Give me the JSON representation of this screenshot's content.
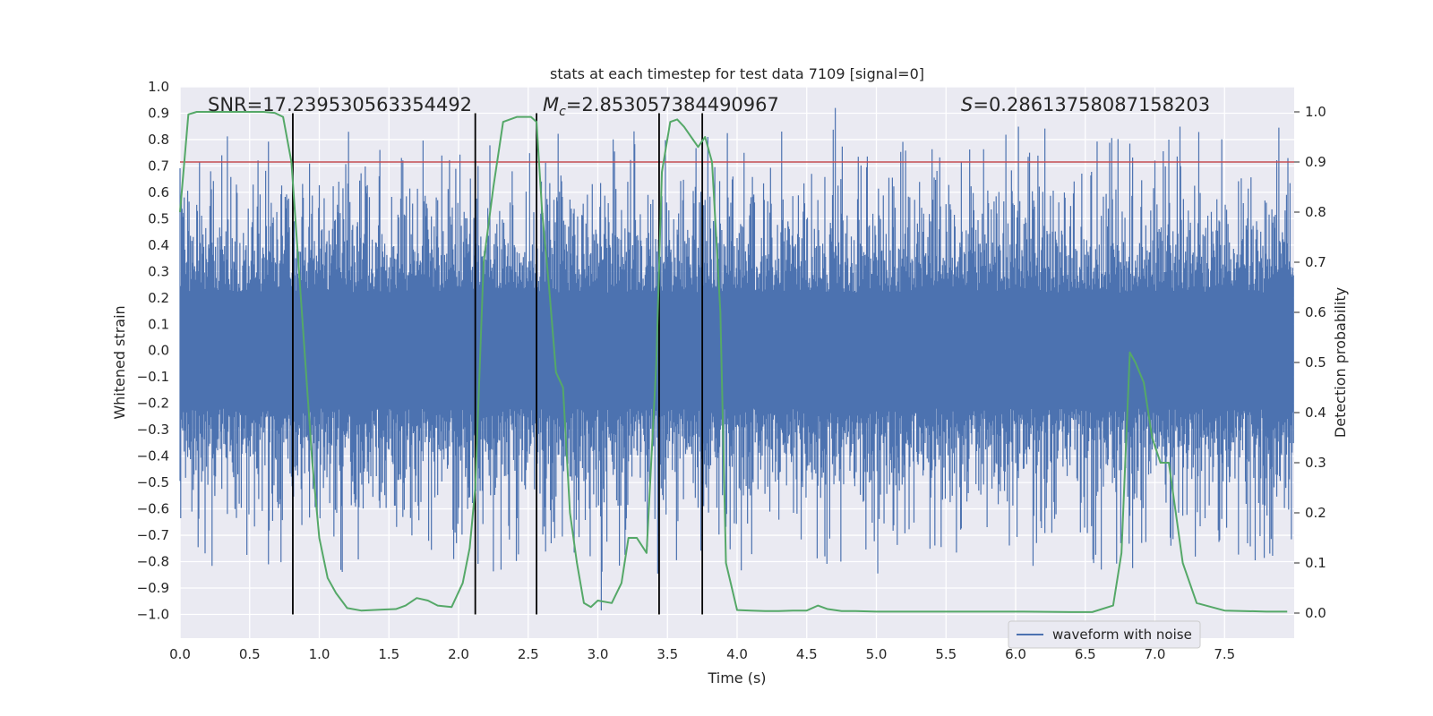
{
  "chart_data": {
    "type": "line",
    "title": "stats at each timestep for test data 7109 [signal=0]",
    "xlabel": "Time (s)",
    "ylabel_left": "Whitened strain",
    "ylabel_right": "Detection probability",
    "xlim": [
      0.0,
      8.0
    ],
    "ylim_left": [
      -1.09,
      1.0
    ],
    "ylim_right": [
      -0.05,
      1.05
    ],
    "x_ticks": [
      "0.0",
      "0.5",
      "1.0",
      "1.5",
      "2.0",
      "2.5",
      "3.0",
      "3.5",
      "4.0",
      "4.5",
      "5.0",
      "5.5",
      "6.0",
      "6.5",
      "7.0",
      "7.5"
    ],
    "y_left_ticks": [
      "1.0",
      "0.9",
      "0.8",
      "0.7",
      "0.6",
      "0.5",
      "0.4",
      "0.3",
      "0.2",
      "0.1",
      "0.0",
      "−0.1",
      "−0.2",
      "−0.3",
      "−0.4",
      "−0.5",
      "−0.6",
      "−0.7",
      "−0.8",
      "−0.9",
      "−1.0"
    ],
    "y_right_ticks": [
      "1.0",
      "0.9",
      "0.8",
      "0.7",
      "0.6",
      "0.5",
      "0.4",
      "0.3",
      "0.2",
      "0.1",
      "0.0"
    ],
    "annotations": {
      "snr": "SNR=17.239530563354492",
      "mc_symbol": "M",
      "mc_sub": "c",
      "mc_value": "=2.853057384490967",
      "s_symbol": "S",
      "s_value": "=0.28613758087158203"
    },
    "legend": {
      "label": "waveform with noise",
      "position": "lower-right"
    },
    "threshold": {
      "value": 0.9,
      "axis": "right",
      "color": "#c44e52"
    },
    "vertical_lines": [
      0.81,
      2.12,
      2.56,
      3.44,
      3.75
    ],
    "vertical_line_range": [
      -1.0,
      0.9
    ],
    "waveform": {
      "color": "#4c72b0",
      "x_range": [
        0.0,
        8.0
      ],
      "samples": 1600,
      "typical_amplitude": 0.3,
      "peak_max": 0.92,
      "peak_min": -1.0
    },
    "probability": {
      "color": "#55a868",
      "x": [
        0.0,
        0.06,
        0.12,
        0.2,
        0.3,
        0.4,
        0.5,
        0.6,
        0.68,
        0.74,
        0.8,
        0.85,
        0.9,
        0.95,
        1.0,
        1.06,
        1.12,
        1.2,
        1.3,
        1.45,
        1.55,
        1.62,
        1.7,
        1.78,
        1.85,
        1.95,
        2.03,
        2.08,
        2.12,
        2.18,
        2.25,
        2.32,
        2.42,
        2.48,
        2.52,
        2.56,
        2.6,
        2.65,
        2.7,
        2.75,
        2.8,
        2.85,
        2.9,
        2.95,
        3.0,
        3.1,
        3.17,
        3.22,
        3.28,
        3.35,
        3.42,
        3.46,
        3.52,
        3.57,
        3.62,
        3.67,
        3.72,
        3.77,
        3.82,
        3.88,
        3.92,
        4.0,
        4.1,
        4.2,
        4.3,
        4.4,
        4.5,
        4.58,
        4.65,
        4.75,
        4.85,
        5.0,
        5.5,
        6.0,
        6.4,
        6.55,
        6.7,
        6.76,
        6.82,
        6.86,
        6.92,
        6.98,
        7.04,
        7.1,
        7.15,
        7.2,
        7.3,
        7.5,
        7.8,
        7.95
      ],
      "y": [
        0.8,
        0.995,
        1.0,
        1.0,
        1.0,
        1.0,
        1.0,
        1.0,
        0.998,
        0.99,
        0.9,
        0.7,
        0.5,
        0.3,
        0.15,
        0.07,
        0.04,
        0.01,
        0.005,
        0.007,
        0.008,
        0.015,
        0.03,
        0.025,
        0.015,
        0.012,
        0.06,
        0.13,
        0.25,
        0.7,
        0.85,
        0.98,
        0.99,
        0.99,
        0.99,
        0.98,
        0.8,
        0.65,
        0.48,
        0.45,
        0.2,
        0.1,
        0.02,
        0.012,
        0.025,
        0.02,
        0.06,
        0.15,
        0.15,
        0.12,
        0.5,
        0.88,
        0.98,
        0.985,
        0.97,
        0.95,
        0.93,
        0.95,
        0.9,
        0.6,
        0.1,
        0.006,
        0.005,
        0.004,
        0.004,
        0.005,
        0.005,
        0.015,
        0.008,
        0.004,
        0.004,
        0.003,
        0.003,
        0.003,
        0.002,
        0.002,
        0.015,
        0.12,
        0.52,
        0.5,
        0.46,
        0.35,
        0.3,
        0.3,
        0.2,
        0.1,
        0.02,
        0.005,
        0.003,
        0.003
      ]
    }
  }
}
